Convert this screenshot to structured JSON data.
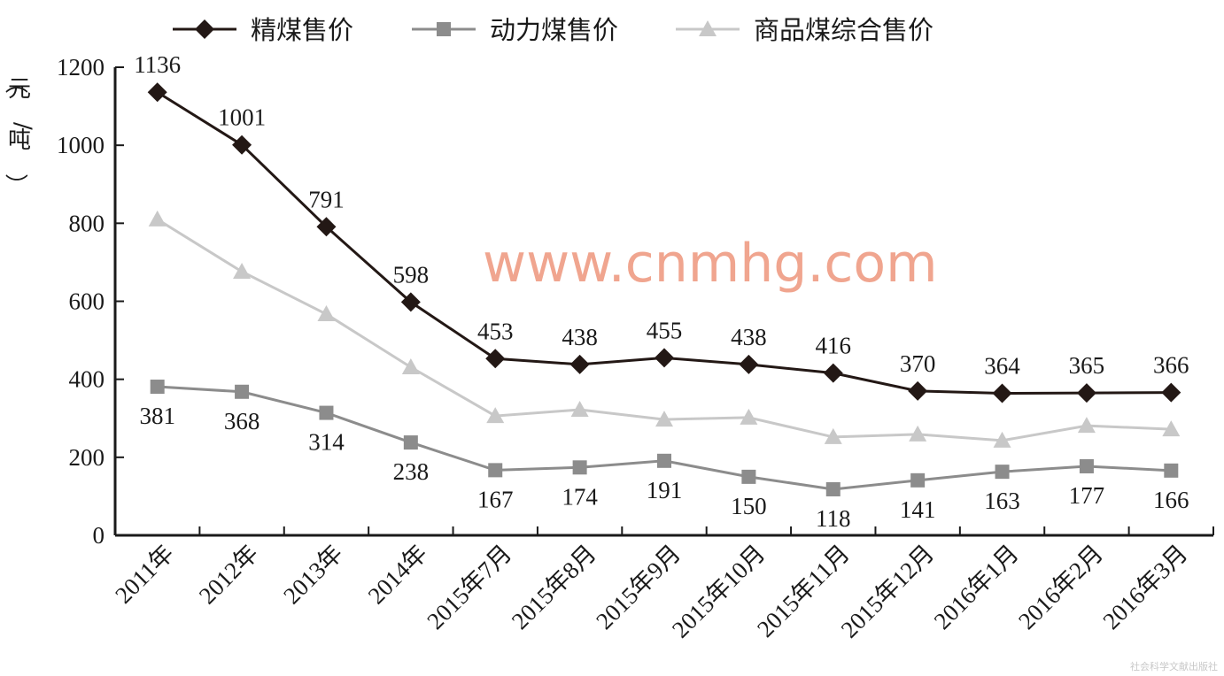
{
  "chart_data": {
    "type": "line",
    "title": "",
    "ylabel": "（元/吨）",
    "xlabel": "",
    "ylim": [
      0,
      1200
    ],
    "yticks": [
      0,
      200,
      400,
      600,
      800,
      1000,
      1200
    ],
    "grid": false,
    "legend_position": "top",
    "categories": [
      "2011年",
      "2012年",
      "2013年",
      "2014年",
      "2015年7月",
      "2015年8月",
      "2015年9月",
      "2015年10月",
      "2015年11月",
      "2015年12月",
      "2016年1月",
      "2016年2月",
      "2016年3月"
    ],
    "series": [
      {
        "name": "精煤售价",
        "color": "#231815",
        "marker": "diamond",
        "labels": "above",
        "values": [
          1136,
          1001,
          791,
          598,
          453,
          438,
          455,
          438,
          416,
          370,
          364,
          365,
          366
        ]
      },
      {
        "name": "动力煤售价",
        "color": "#8c8c8c",
        "marker": "square",
        "labels": "below",
        "values": [
          381,
          368,
          314,
          238,
          167,
          174,
          191,
          150,
          118,
          141,
          163,
          177,
          166
        ]
      },
      {
        "name": "商品煤综合售价",
        "color": "#c8c8c8",
        "marker": "triangle",
        "labels": "none",
        "values": [
          810,
          676,
          567,
          431,
          306,
          322,
          297,
          302,
          252,
          259,
          243,
          281,
          272
        ]
      }
    ]
  },
  "watermark": "www.cnmhg.com",
  "publisher_mark": "社会科学文献出版社"
}
